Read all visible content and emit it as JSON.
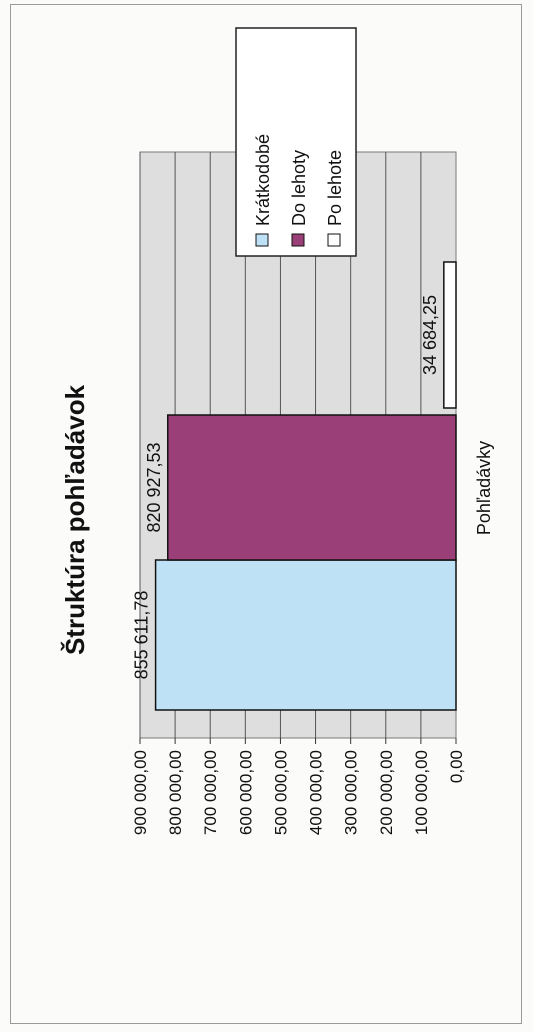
{
  "chart_data": {
    "type": "bar",
    "orientation": "horizontal",
    "title": "Štruktúra pohľadávok",
    "category_label": "Pohľadávky",
    "ylim": [
      0,
      900000
    ],
    "ticks": [
      {
        "value": 900000,
        "label": "900 000,00"
      },
      {
        "value": 800000,
        "label": "800 000,00"
      },
      {
        "value": 700000,
        "label": "700 000,00"
      },
      {
        "value": 600000,
        "label": "600 000,00"
      },
      {
        "value": 500000,
        "label": "500 000,00"
      },
      {
        "value": 400000,
        "label": "400 000,00"
      },
      {
        "value": 300000,
        "label": "300 000,00"
      },
      {
        "value": 200000,
        "label": "200 000,00"
      },
      {
        "value": 100000,
        "label": "100 000,00"
      },
      {
        "value": 0,
        "label": "0,00"
      }
    ],
    "series": [
      {
        "name": "Krátkodobé",
        "value": 855611.78,
        "label": "855 611,78",
        "color": "#bfe1f6"
      },
      {
        "name": "Do lehoty",
        "value": 820927.53,
        "label": "820 927,53",
        "color": "#9b3f78"
      },
      {
        "name": "Po lehote",
        "value": 34684.25,
        "label": "34 684,25",
        "color": "#ffffff"
      }
    ],
    "legend": {
      "position": "top-right"
    },
    "grid": true
  }
}
